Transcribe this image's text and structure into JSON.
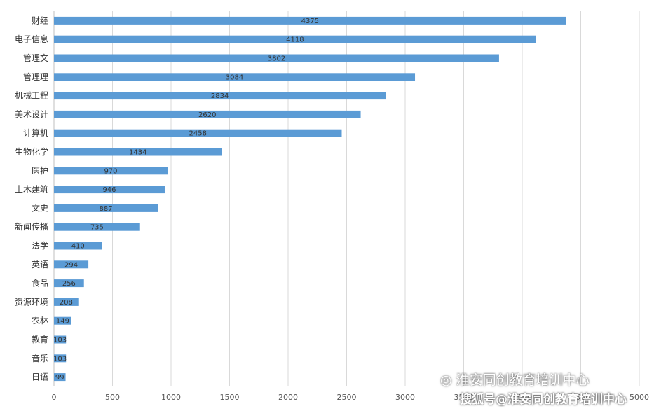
{
  "chart_data": {
    "type": "bar",
    "orientation": "horizontal",
    "categories": [
      "财经",
      "电子信息",
      "管理文",
      "管理理",
      "机械工程",
      "美术设计",
      "计算机",
      "生物化学",
      "医护",
      "土木建筑",
      "文史",
      "新闻传播",
      "法学",
      "英语",
      "食品",
      "资源环境",
      "农林",
      "教育",
      "音乐",
      "日语"
    ],
    "values": [
      4375,
      4118,
      3802,
      3084,
      2834,
      2620,
      2458,
      1434,
      970,
      946,
      887,
      735,
      410,
      294,
      256,
      208,
      149,
      103,
      103,
      99
    ],
    "xlim": [
      0,
      5000
    ],
    "x_ticks": [
      0,
      500,
      1000,
      1500,
      2000,
      2500,
      3000,
      3500,
      4000,
      4500,
      5000
    ],
    "x_tick_labels": [
      "0",
      "500",
      "1000",
      "1500",
      "2000",
      "2500",
      "3000",
      "3500",
      "4000",
      "4500",
      "5000"
    ],
    "grid": "vertical",
    "bar_color": "#5b9bd5",
    "data_labels": true
  },
  "watermark": {
    "line1": "淮安同创教育培训中心",
    "line2": "搜狐号@淮安同创教育培训中心"
  }
}
